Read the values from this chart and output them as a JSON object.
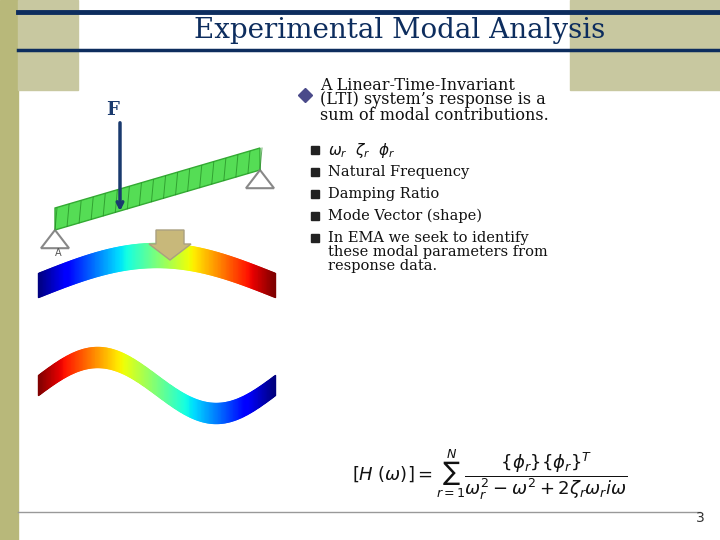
{
  "title": "Experimental Modal Analysis",
  "title_color": "#0d2d5e",
  "title_fontsize": 20,
  "background_color": "#ffffff",
  "left_bar1_color": "#b8b87a",
  "left_bar2_color": "#c8c8a0",
  "top_rect_color": "#c8c8a0",
  "header_line_color": "#0d2d5e",
  "text_color": "#111111",
  "bullet_main_line1": "A Linear-Time-Invariant",
  "bullet_main_line2": "(LTI) system’s response is a",
  "bullet_main_line3": "sum of modal contributions.",
  "sub_bullets": [
    "\\omega_r  \\zeta_r  \\phi_r",
    "Natural Frequency",
    "Damping Ratio",
    "Mode Vector (shape)",
    "In EMA we seek to identify\nthese modal parameters from\nresponse data."
  ],
  "page_number": "3",
  "beam_color": "#44cc44",
  "beam_grid_color": "#228822",
  "arrow_color": "#1a3a6e",
  "block_arrow_color": "#c8b87a",
  "triangle_color": "#c8c8a0",
  "formula_color": "#111111"
}
